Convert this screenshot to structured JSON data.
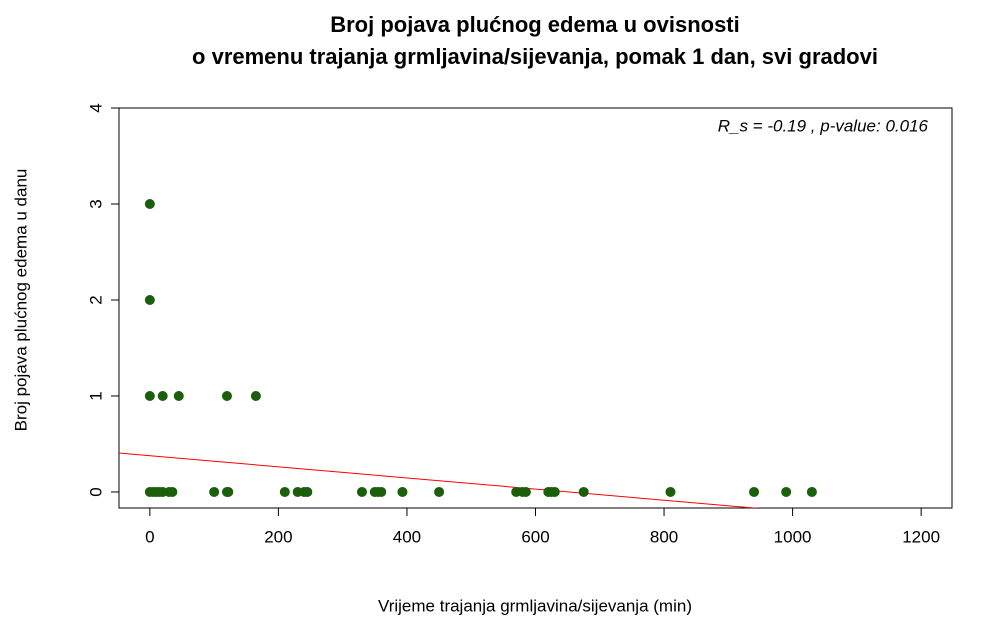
{
  "chart_data": {
    "type": "scatter",
    "title": [
      "Broj pojava plućnog edema u ovisnosti",
      "o vremenu trajanja grmljavina/sijevanja, pomak 1 dan, svi gradovi"
    ],
    "xlabel": "Vrijeme trajanja grmljavina/sijevanja (min)",
    "ylabel": "Broj pojava plućnog edema u danu",
    "annotation": "R_s = -0.19 , p-value: 0.016",
    "series": [
      {
        "color": "#1b5e0b",
        "x": [
          0,
          0,
          0,
          20,
          45,
          120,
          165,
          0,
          5,
          10,
          15,
          20,
          30,
          35,
          100,
          120,
          122,
          210,
          230,
          240,
          245,
          330,
          350,
          355,
          360,
          393,
          450,
          570,
          580,
          585,
          620,
          625,
          630,
          675,
          810,
          940,
          990,
          1030
        ],
        "values": [
          3,
          2,
          1,
          1,
          1,
          1,
          1,
          0,
          0,
          0,
          0,
          0,
          0,
          0,
          0,
          0,
          0,
          0,
          0,
          0,
          0,
          0,
          0,
          0,
          0,
          0,
          0,
          0,
          0,
          0,
          0,
          0,
          0,
          0,
          0,
          0,
          0,
          0
        ]
      }
    ],
    "regression_line": {
      "intercept": 0.378,
      "slope": -0.00058,
      "color": "#ff0000"
    },
    "xlim": [
      -48,
      1248
    ],
    "xticks": [
      0,
      200,
      400,
      600,
      800,
      1000,
      1200
    ],
    "ylim": [
      -0.167,
      4
    ],
    "yticks": [
      0,
      1,
      2,
      3,
      4
    ]
  }
}
